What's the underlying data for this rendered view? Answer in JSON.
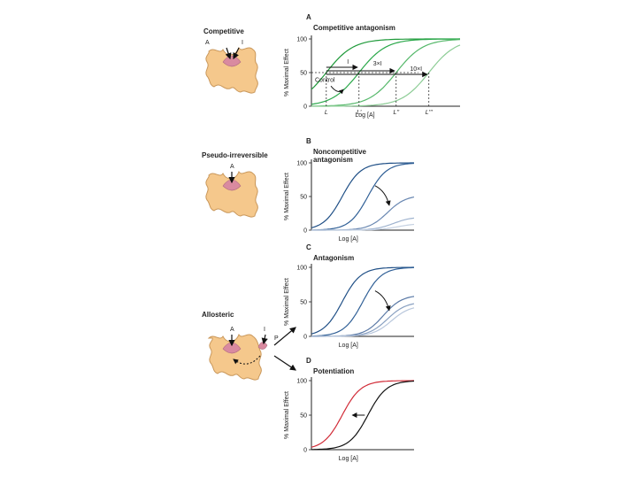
{
  "left_labels": {
    "competitive": "Competitive",
    "pseudo_irreversible": "Pseudo-irreversible",
    "allosteric": "Allosteric",
    "agonist": "A",
    "inhibitor": "I",
    "receptor_p": "P"
  },
  "colors": {
    "receptor": "#f5c88c",
    "receptor_stroke": "#c9975a",
    "site": "#d98aa0",
    "competitive_lines": [
      "#1f9a3a",
      "#2aa84a",
      "#55b86a",
      "#8ccc95"
    ],
    "noncompetitive_lines": [
      "#1f4f86",
      "#2f5f96",
      "#6a88b2",
      "#9fb3cf",
      "#c5d1e2"
    ],
    "antagonism_lines": [
      "#1f4f86",
      "#2f5f96",
      "#5a79a6",
      "#8aa1c2",
      "#b9c7dc"
    ],
    "potentiation_lines": [
      "#d12a36",
      "#111111"
    ]
  },
  "panels": [
    {
      "letter": "A",
      "title": "Competitive antagonism",
      "ylabel": "% Maximal Effect",
      "xlabel": "Log [A]",
      "yticks": [
        "100",
        "50",
        "0"
      ],
      "annotations": {
        "control": "Control",
        "i1": "I",
        "i3": "3×I",
        "i10": "10×I",
        "x_marks": [
          "L",
          "L'",
          "L''",
          "L'''"
        ]
      }
    },
    {
      "letter": "B",
      "title": "Noncompetitive antagonism",
      "title_lines": [
        "Noncompetitive",
        "antagonism"
      ],
      "ylabel": "% Maximal Effect",
      "xlabel": "Log [A]",
      "yticks": [
        "100",
        "50",
        "0"
      ]
    },
    {
      "letter": "C",
      "title": "Antagonism",
      "ylabel": "% Maximal Effect",
      "xlabel": "Log [A]",
      "yticks": [
        "100",
        "50",
        "0"
      ]
    },
    {
      "letter": "D",
      "title": "Potentiation",
      "ylabel": "% Maximal Effect",
      "xlabel": "Log [A]",
      "yticks": [
        "100",
        "50",
        "0"
      ]
    }
  ],
  "chart_data": [
    {
      "type": "line",
      "title": "Competitive antagonism",
      "xlabel": "Log [A]",
      "ylabel": "% Maximal Effect",
      "ylim": [
        0,
        100
      ],
      "x_scale": "log",
      "series": [
        {
          "name": "Control",
          "ec50_pos": 0.1,
          "max": 100
        },
        {
          "name": "I",
          "ec50_pos": 0.32,
          "max": 100
        },
        {
          "name": "3×I",
          "ec50_pos": 0.57,
          "max": 100
        },
        {
          "name": "10×I",
          "ec50_pos": 0.79,
          "max": 100
        }
      ]
    },
    {
      "type": "line",
      "title": "Noncompetitive antagonism",
      "xlabel": "Log [A]",
      "ylabel": "% Maximal Effect",
      "ylim": [
        0,
        100
      ],
      "x_scale": "log",
      "series": [
        {
          "ec50_pos": 0.3,
          "max": 100
        },
        {
          "ec50_pos": 0.55,
          "max": 100
        },
        {
          "ec50_pos": 0.74,
          "max": 52
        },
        {
          "ec50_pos": 0.8,
          "max": 20
        },
        {
          "ec50_pos": 0.84,
          "max": 10
        }
      ]
    },
    {
      "type": "line",
      "title": "Antagonism",
      "xlabel": "Log [A]",
      "ylabel": "% Maximal Effect",
      "ylim": [
        0,
        100
      ],
      "x_scale": "log",
      "series": [
        {
          "ec50_pos": 0.3,
          "max": 100
        },
        {
          "ec50_pos": 0.5,
          "max": 100
        },
        {
          "ec50_pos": 0.7,
          "max": 60
        },
        {
          "ec50_pos": 0.74,
          "max": 50
        },
        {
          "ec50_pos": 0.78,
          "max": 45
        }
      ]
    },
    {
      "type": "line",
      "title": "Potentiation",
      "xlabel": "Log [A]",
      "ylabel": "% Maximal Effect",
      "ylim": [
        0,
        100
      ],
      "x_scale": "log",
      "series": [
        {
          "ec50_pos": 0.3,
          "max": 100
        },
        {
          "ec50_pos": 0.55,
          "max": 100
        }
      ]
    }
  ]
}
